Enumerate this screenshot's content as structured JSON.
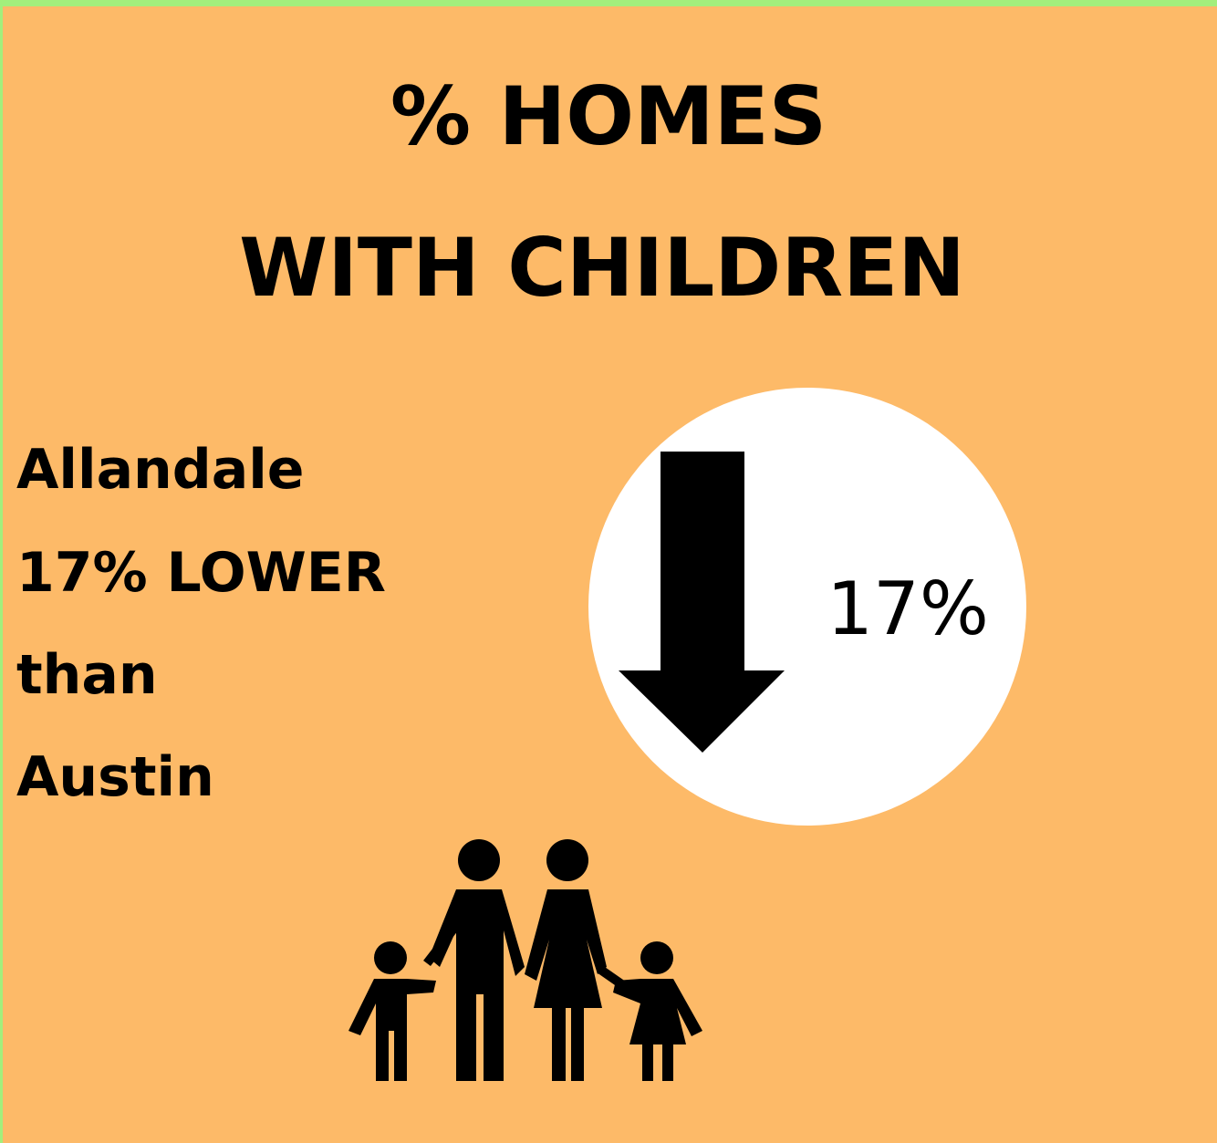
{
  "title": {
    "lines": [
      "% HOMES",
      "WITH CHILDREN"
    ]
  },
  "description": {
    "lines": [
      "Allandale",
      "17% LOWER",
      "than",
      "Austin"
    ]
  },
  "badge": {
    "value": "17%"
  }
}
